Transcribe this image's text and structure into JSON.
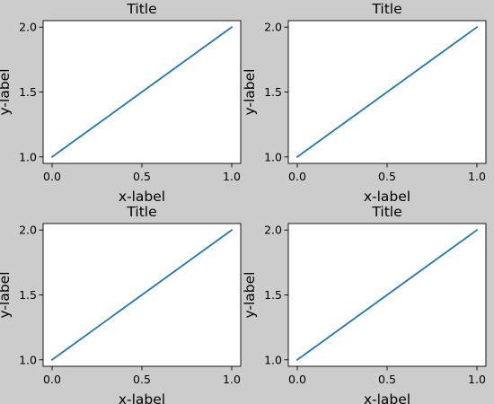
{
  "figure": {
    "background_color": "#cccccc",
    "axes_background_color": "#ffffff",
    "line_color": "#1f77b4"
  },
  "chart_data": [
    {
      "type": "line",
      "title": "Title",
      "xlabel": "x-label",
      "ylabel": "y-label",
      "xlim": [
        -0.05,
        1.05
      ],
      "ylim": [
        0.95,
        2.05
      ],
      "xticks": [
        0.0,
        0.5,
        1.0
      ],
      "xtick_labels": [
        "0.0",
        "0.5",
        "1.0"
      ],
      "yticks": [
        1.0,
        1.5,
        2.0
      ],
      "ytick_labels": [
        "1.0",
        "1.5",
        "2.0"
      ],
      "grid": false,
      "series": [
        {
          "x": [
            0,
            1
          ],
          "y": [
            1,
            2
          ]
        }
      ]
    },
    {
      "type": "line",
      "title": "Title",
      "xlabel": "x-label",
      "ylabel": "y-label",
      "xlim": [
        -0.05,
        1.05
      ],
      "ylim": [
        0.95,
        2.05
      ],
      "xticks": [
        0.0,
        0.5,
        1.0
      ],
      "xtick_labels": [
        "0.0",
        "0.5",
        "1.0"
      ],
      "yticks": [
        1.0,
        1.5,
        2.0
      ],
      "ytick_labels": [
        "1.0",
        "1.5",
        "2.0"
      ],
      "grid": false,
      "series": [
        {
          "x": [
            0,
            1
          ],
          "y": [
            1,
            2
          ]
        }
      ]
    },
    {
      "type": "line",
      "title": "Title",
      "xlabel": "x-label",
      "ylabel": "y-label",
      "xlim": [
        -0.05,
        1.05
      ],
      "ylim": [
        0.95,
        2.05
      ],
      "xticks": [
        0.0,
        0.5,
        1.0
      ],
      "xtick_labels": [
        "0.0",
        "0.5",
        "1.0"
      ],
      "yticks": [
        1.0,
        1.5,
        2.0
      ],
      "ytick_labels": [
        "1.0",
        "1.5",
        "2.0"
      ],
      "grid": false,
      "series": [
        {
          "x": [
            0,
            1
          ],
          "y": [
            1,
            2
          ]
        }
      ]
    },
    {
      "type": "line",
      "title": "Title",
      "xlabel": "x-label",
      "ylabel": "y-label",
      "xlim": [
        -0.05,
        1.05
      ],
      "ylim": [
        0.95,
        2.05
      ],
      "xticks": [
        0.0,
        0.5,
        1.0
      ],
      "xtick_labels": [
        "0.0",
        "0.5",
        "1.0"
      ],
      "yticks": [
        1.0,
        1.5,
        2.0
      ],
      "ytick_labels": [
        "1.0",
        "1.5",
        "2.0"
      ],
      "grid": false,
      "series": [
        {
          "x": [
            0,
            1
          ],
          "y": [
            1,
            2
          ]
        }
      ]
    }
  ]
}
